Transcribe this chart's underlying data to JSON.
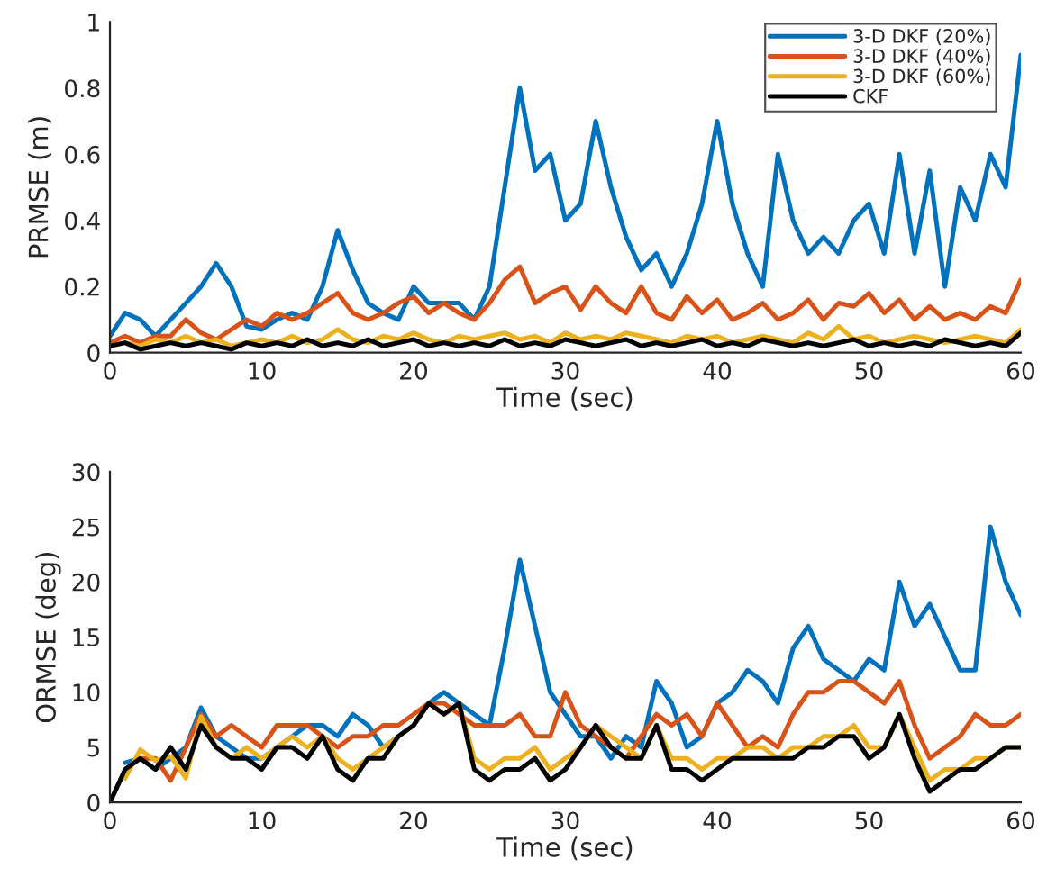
{
  "chart_data": [
    {
      "type": "line",
      "xlabel": "Time (sec)",
      "ylabel": "PRMSE (m)",
      "xlim": [
        0,
        60
      ],
      "xticks": [
        0,
        10,
        20,
        30,
        40,
        50,
        60
      ],
      "ylim": [
        0,
        1
      ],
      "yticks": [
        0,
        0.2,
        0.4,
        0.6,
        0.8,
        1
      ],
      "grid": false,
      "legend": "top right",
      "x": [
        0,
        1,
        2,
        3,
        4,
        5,
        6,
        7,
        8,
        9,
        10,
        11,
        12,
        13,
        14,
        15,
        16,
        17,
        18,
        19,
        20,
        21,
        22,
        23,
        24,
        25,
        26,
        27,
        28,
        29,
        30,
        31,
        32,
        33,
        34,
        35,
        36,
        37,
        38,
        39,
        40,
        41,
        42,
        43,
        44,
        45,
        46,
        47,
        48,
        49,
        50,
        51,
        52,
        53,
        54,
        55,
        56,
        57,
        58,
        59,
        60
      ],
      "series": [
        {
          "name": "3-D DKF (20%)",
          "color": "#0072bd",
          "values": [
            0.05,
            0.12,
            0.1,
            0.05,
            0.1,
            0.15,
            0.2,
            0.27,
            0.2,
            0.08,
            0.07,
            0.1,
            0.12,
            0.1,
            0.2,
            0.37,
            0.25,
            0.15,
            0.12,
            0.1,
            0.2,
            0.15,
            0.15,
            0.15,
            0.1,
            0.2,
            0.5,
            0.8,
            0.55,
            0.6,
            0.4,
            0.45,
            0.7,
            0.5,
            0.35,
            0.25,
            0.3,
            0.2,
            0.3,
            0.45,
            0.7,
            0.45,
            0.3,
            0.2,
            0.6,
            0.4,
            0.3,
            0.35,
            0.3,
            0.4,
            0.45,
            0.3,
            0.6,
            0.3,
            0.55,
            0.2,
            0.5,
            0.4,
            0.6,
            0.5,
            0.9
          ]
        },
        {
          "name": "3-D DKF (40%)",
          "color": "#d95319",
          "values": [
            0.03,
            0.05,
            0.03,
            0.05,
            0.05,
            0.1,
            0.06,
            0.04,
            0.07,
            0.1,
            0.08,
            0.12,
            0.1,
            0.12,
            0.15,
            0.18,
            0.12,
            0.1,
            0.12,
            0.15,
            0.17,
            0.12,
            0.15,
            0.12,
            0.1,
            0.15,
            0.22,
            0.26,
            0.15,
            0.18,
            0.2,
            0.13,
            0.2,
            0.15,
            0.12,
            0.2,
            0.12,
            0.1,
            0.17,
            0.12,
            0.16,
            0.1,
            0.12,
            0.15,
            0.1,
            0.12,
            0.16,
            0.1,
            0.15,
            0.14,
            0.18,
            0.12,
            0.16,
            0.1,
            0.14,
            0.1,
            0.12,
            0.1,
            0.14,
            0.12,
            0.22
          ]
        },
        {
          "name": "3-D DKF (60%)",
          "color": "#edb120",
          "values": [
            0.02,
            0.03,
            0.02,
            0.04,
            0.03,
            0.05,
            0.03,
            0.04,
            0.02,
            0.03,
            0.04,
            0.03,
            0.05,
            0.03,
            0.04,
            0.07,
            0.04,
            0.03,
            0.05,
            0.04,
            0.06,
            0.04,
            0.03,
            0.05,
            0.04,
            0.05,
            0.06,
            0.04,
            0.05,
            0.03,
            0.06,
            0.04,
            0.05,
            0.04,
            0.06,
            0.05,
            0.04,
            0.03,
            0.05,
            0.04,
            0.05,
            0.03,
            0.04,
            0.05,
            0.04,
            0.03,
            0.06,
            0.04,
            0.08,
            0.04,
            0.05,
            0.03,
            0.04,
            0.05,
            0.04,
            0.03,
            0.04,
            0.05,
            0.04,
            0.03,
            0.07
          ]
        },
        {
          "name": "CKF",
          "color": "#000000",
          "values": [
            0.02,
            0.03,
            0.01,
            0.02,
            0.03,
            0.02,
            0.03,
            0.02,
            0.01,
            0.03,
            0.02,
            0.03,
            0.02,
            0.04,
            0.02,
            0.03,
            0.02,
            0.04,
            0.02,
            0.03,
            0.04,
            0.02,
            0.03,
            0.02,
            0.03,
            0.02,
            0.04,
            0.02,
            0.03,
            0.02,
            0.04,
            0.03,
            0.02,
            0.03,
            0.04,
            0.02,
            0.03,
            0.02,
            0.03,
            0.04,
            0.02,
            0.03,
            0.02,
            0.04,
            0.03,
            0.02,
            0.03,
            0.02,
            0.03,
            0.04,
            0.02,
            0.03,
            0.02,
            0.03,
            0.02,
            0.04,
            0.03,
            0.02,
            0.03,
            0.02,
            0.06
          ]
        }
      ]
    },
    {
      "type": "line",
      "xlabel": "Time (sec)",
      "ylabel": "ORMSE (deg)",
      "xlim": [
        0,
        60
      ],
      "xticks": [
        0,
        10,
        20,
        30,
        40,
        50,
        60
      ],
      "ylim": [
        0,
        30
      ],
      "yticks": [
        0,
        5,
        10,
        15,
        20,
        25,
        30
      ],
      "grid": false,
      "x": [
        0,
        1,
        2,
        3,
        4,
        5,
        6,
        7,
        8,
        9,
        10,
        11,
        12,
        13,
        14,
        15,
        16,
        17,
        18,
        19,
        20,
        21,
        22,
        23,
        24,
        25,
        26,
        27,
        28,
        29,
        30,
        31,
        32,
        33,
        34,
        35,
        36,
        37,
        38,
        39,
        40,
        41,
        42,
        43,
        44,
        45,
        46,
        47,
        48,
        49,
        50,
        51,
        52,
        53,
        54,
        55,
        56,
        57,
        58,
        59,
        60
      ],
      "series": [
        {
          "color": "#0072bd",
          "values": [
            null,
            3.6,
            4,
            3,
            4,
            5,
            8.6,
            6,
            5,
            4,
            4,
            5,
            6,
            7,
            7,
            6,
            8,
            7,
            5,
            6,
            7,
            9,
            10,
            9,
            8,
            7,
            14,
            22,
            16,
            10,
            8,
            6,
            6,
            4,
            6,
            5,
            11,
            9,
            5,
            6,
            9,
            10,
            12,
            11,
            9,
            14,
            16,
            13,
            12,
            11,
            13,
            12,
            20,
            16,
            18,
            15,
            12,
            12,
            25,
            20,
            17
          ]
        },
        {
          "color": "#d95319",
          "values": [
            0,
            3,
            4,
            4,
            2,
            5,
            8,
            6,
            7,
            6,
            5,
            7,
            7,
            7,
            6,
            5,
            6,
            6,
            7,
            7,
            8,
            9,
            9,
            8,
            7,
            7,
            7,
            8,
            6,
            6,
            10,
            7,
            6,
            5,
            4,
            6,
            8,
            7,
            8,
            6,
            9,
            7,
            5,
            6,
            5,
            8,
            10,
            10,
            11,
            11,
            10,
            9,
            11,
            7,
            4,
            5,
            6,
            8,
            7,
            7,
            8
          ]
        },
        {
          "color": "#edb120",
          "values": [
            null,
            2.2,
            4.8,
            3.8,
            4.2,
            2.2,
            7.8,
            5,
            4,
            5,
            4,
            5,
            6,
            5,
            6,
            4,
            3,
            4,
            5,
            6,
            7,
            9,
            8,
            9,
            4,
            3,
            4,
            4,
            5,
            3,
            4,
            5,
            7,
            6,
            5,
            4,
            7,
            4,
            4,
            3,
            4,
            4,
            5,
            5,
            4,
            5,
            5,
            6,
            6,
            7,
            5,
            5,
            8,
            5,
            2,
            3,
            3,
            4,
            4,
            5,
            5
          ]
        },
        {
          "color": "#000000",
          "values": [
            0,
            3,
            4,
            3,
            5,
            3,
            7,
            5,
            4,
            4,
            3,
            5,
            5,
            4,
            6,
            3,
            2,
            4,
            4,
            6,
            7,
            9,
            8,
            9,
            3,
            2,
            3,
            3,
            4,
            2,
            3,
            5,
            7,
            5,
            4,
            4,
            7,
            3,
            3,
            2,
            3,
            4,
            4,
            4,
            4,
            4,
            5,
            5,
            6,
            6,
            4,
            5,
            8,
            4,
            1,
            2,
            3,
            3,
            4,
            5,
            5
          ]
        }
      ]
    }
  ]
}
